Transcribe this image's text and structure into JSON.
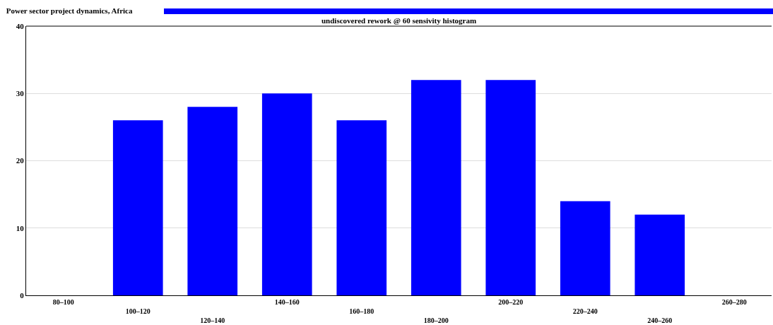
{
  "chart_data": {
    "type": "bar",
    "title": "Power sector project dynamics, Africa",
    "subtitle": "undiscovered rework @ 60 sensivity histogram",
    "categories": [
      "80–100",
      "100–120",
      "120–140",
      "140–160",
      "160–180",
      "180–200",
      "200–220",
      "220–240",
      "240–260",
      "260–280"
    ],
    "values": [
      0,
      26,
      28,
      30,
      26,
      32,
      32,
      14,
      12,
      0
    ],
    "color": "#0000ff",
    "ylim": [
      0,
      40
    ],
    "yticks": [
      0,
      10,
      20,
      30,
      40
    ],
    "grid": "y"
  }
}
